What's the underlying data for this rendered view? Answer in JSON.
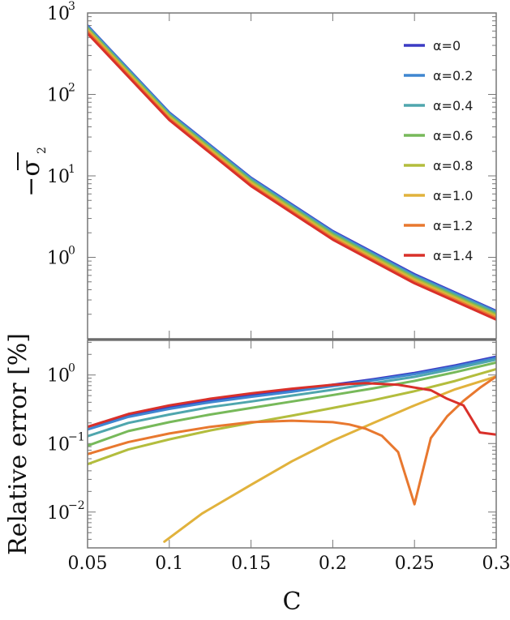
{
  "chart_data": {
    "type": "line",
    "x_axis": {
      "label": "C",
      "range": [
        0.05,
        0.3
      ],
      "ticks": [
        0.05,
        0.1,
        0.15,
        0.2,
        0.25,
        0.3
      ],
      "tick_labels": [
        "0.05",
        "0.1",
        "0.15",
        "0.2",
        "0.25",
        "0.3"
      ]
    },
    "panels": [
      {
        "id": "top",
        "scale": "log",
        "ylabel": "−σ̄₂",
        "ylabel_base": "−σ",
        "ylabel_sub": "2",
        "ylim": [
          0.1,
          1000
        ],
        "ticks": [
          {
            "value": 1000,
            "base": "10",
            "exp": "3"
          },
          {
            "value": 100,
            "base": "10",
            "exp": "2"
          },
          {
            "value": 10,
            "base": "10",
            "exp": "1"
          },
          {
            "value": 1,
            "base": "10",
            "exp": "0"
          }
        ],
        "x": [
          0.05,
          0.1,
          0.15,
          0.2,
          0.25,
          0.3
        ],
        "series": [
          {
            "name": "α=0",
            "color": "#3b3bc4",
            "values": [
              700,
              60,
              9.5,
              2.1,
              0.62,
              0.22
            ]
          },
          {
            "name": "α=0.2",
            "color": "#3f86d0",
            "values": [
              690,
              59,
              9.3,
              2.05,
              0.6,
              0.215
            ]
          },
          {
            "name": "α=0.4",
            "color": "#4fa6ad",
            "values": [
              670,
              57,
              9.0,
              1.98,
              0.58,
              0.208
            ]
          },
          {
            "name": "α=0.6",
            "color": "#77b95a",
            "values": [
              650,
              55.5,
              8.7,
              1.92,
              0.56,
              0.2
            ]
          },
          {
            "name": "α=0.8",
            "color": "#b3bd3d",
            "values": [
              630,
              54,
              8.4,
              1.85,
              0.54,
              0.193
            ]
          },
          {
            "name": "α=1.0",
            "color": "#e1b23c",
            "values": [
              610,
              52,
              8.1,
              1.78,
              0.52,
              0.186
            ]
          },
          {
            "name": "α=1.2",
            "color": "#e8782f",
            "values": [
              590,
              50.5,
              7.8,
              1.72,
              0.5,
              0.18
            ]
          },
          {
            "name": "α=1.4",
            "color": "#d9302a",
            "values": [
              560,
              48.5,
              7.5,
              1.65,
              0.48,
              0.172
            ]
          }
        ]
      },
      {
        "id": "bottom",
        "scale": "log",
        "ylabel": "Relative error [%]",
        "ylim": [
          0.003,
          3.2
        ],
        "ticks": [
          {
            "value": 1,
            "base": "10",
            "exp": "0"
          },
          {
            "value": 0.1,
            "base": "10",
            "exp": "−1"
          },
          {
            "value": 0.01,
            "base": "10",
            "exp": "−2"
          }
        ],
        "series": [
          {
            "name": "α=0",
            "color": "#3b3bc4",
            "x": [
              0.05,
              0.075,
              0.1,
              0.125,
              0.15,
              0.175,
              0.2,
              0.225,
              0.25,
              0.275,
              0.3
            ],
            "values": [
              0.175,
              0.26,
              0.34,
              0.42,
              0.5,
              0.6,
              0.72,
              0.87,
              1.07,
              1.38,
              1.85
            ]
          },
          {
            "name": "α=0.2",
            "color": "#3f86d0",
            "x": [
              0.05,
              0.075,
              0.1,
              0.125,
              0.15,
              0.175,
              0.2,
              0.225,
              0.25,
              0.275,
              0.3
            ],
            "values": [
              0.16,
              0.245,
              0.32,
              0.4,
              0.48,
              0.57,
              0.69,
              0.84,
              1.03,
              1.33,
              1.78
            ]
          },
          {
            "name": "α=0.4",
            "color": "#4fa6ad",
            "x": [
              0.05,
              0.075,
              0.1,
              0.125,
              0.15,
              0.175,
              0.2,
              0.225,
              0.25,
              0.275,
              0.3
            ],
            "values": [
              0.128,
              0.2,
              0.265,
              0.34,
              0.41,
              0.5,
              0.61,
              0.76,
              0.94,
              1.24,
              1.68
            ]
          },
          {
            "name": "α=0.6",
            "color": "#77b95a",
            "x": [
              0.05,
              0.075,
              0.1,
              0.125,
              0.15,
              0.175,
              0.2,
              0.225,
              0.25,
              0.275,
              0.3
            ],
            "values": [
              0.093,
              0.152,
              0.205,
              0.265,
              0.33,
              0.41,
              0.51,
              0.64,
              0.82,
              1.1,
              1.52
            ]
          },
          {
            "name": "α=0.8",
            "color": "#b3bd3d",
            "x": [
              0.05,
              0.075,
              0.1,
              0.125,
              0.15,
              0.175,
              0.2,
              0.225,
              0.25,
              0.275,
              0.3
            ],
            "values": [
              0.05,
              0.082,
              0.115,
              0.155,
              0.2,
              0.255,
              0.33,
              0.43,
              0.58,
              0.82,
              1.22
            ]
          },
          {
            "name": "α=1.0",
            "color": "#e1b23c",
            "x": [
              0.097,
              0.12,
              0.15,
              0.175,
              0.2,
              0.225,
              0.25,
              0.275,
              0.3
            ],
            "values": [
              0.0037,
              0.0095,
              0.025,
              0.055,
              0.11,
              0.2,
              0.36,
              0.62,
              0.95
            ]
          },
          {
            "name": "α=1.2",
            "color": "#e8782f",
            "x": [
              0.05,
              0.075,
              0.1,
              0.125,
              0.15,
              0.175,
              0.2,
              0.21,
              0.22,
              0.23,
              0.24,
              0.25,
              0.26,
              0.27,
              0.28,
              0.29,
              0.3
            ],
            "values": [
              0.07,
              0.105,
              0.14,
              0.175,
              0.205,
              0.215,
              0.205,
              0.19,
              0.165,
              0.13,
              0.075,
              0.013,
              0.12,
              0.25,
              0.42,
              0.65,
              0.95
            ]
          },
          {
            "name": "α=1.4",
            "color": "#d9302a",
            "x": [
              0.05,
              0.075,
              0.1,
              0.125,
              0.15,
              0.175,
              0.2,
              0.22,
              0.24,
              0.26,
              0.27,
              0.28,
              0.29,
              0.3
            ],
            "values": [
              0.175,
              0.27,
              0.36,
              0.45,
              0.54,
              0.63,
              0.72,
              0.76,
              0.72,
              0.6,
              0.45,
              0.36,
              0.145,
              0.135
            ]
          }
        ]
      }
    ],
    "legend": {
      "position": "top-right",
      "entries": [
        "α=0",
        "α=0.2",
        "α=0.4",
        "α=0.6",
        "α=0.8",
        "α=1.0",
        "α=1.2",
        "α=1.4"
      ]
    }
  }
}
